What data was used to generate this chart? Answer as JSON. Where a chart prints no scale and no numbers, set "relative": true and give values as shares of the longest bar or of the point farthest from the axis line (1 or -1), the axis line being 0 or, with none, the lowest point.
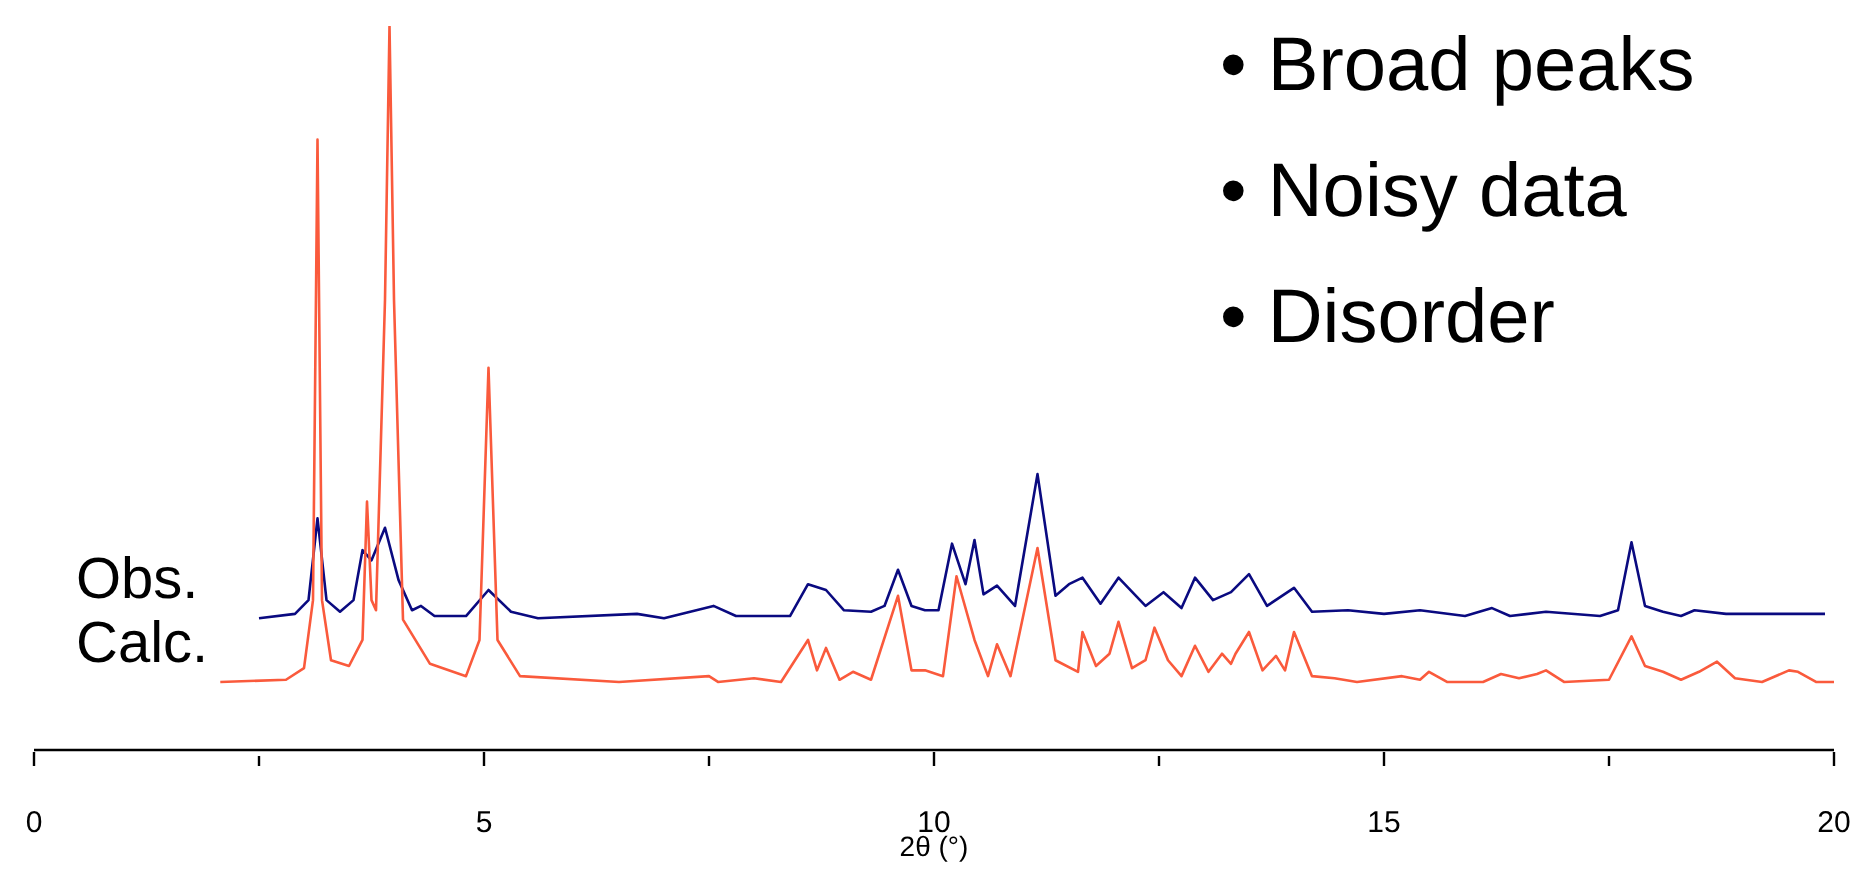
{
  "chart_data": {
    "type": "line",
    "relative": true,
    "xlabel": "2θ (°)",
    "annotations": [
      "• Broad peaks",
      "• Noisy data",
      "• Disorder"
    ],
    "xlim": [
      0,
      20
    ],
    "xticks": [
      0,
      {
        "value": 2.5,
        "label": null
      },
      5,
      {
        "value": 7.5,
        "label": null
      },
      10,
      {
        "value": 12.5,
        "label": null
      },
      15,
      {
        "value": 17.5,
        "label": null
      },
      20
    ],
    "grid": false,
    "legend": false,
    "marker": "none",
    "line_style": "solid",
    "series": [
      {
        "name": "Obs.",
        "color": "#0a0a80",
        "x": [
          2.5,
          2.9,
          3.05,
          3.15,
          3.25,
          3.4,
          3.55,
          3.65,
          3.75,
          3.9,
          4.05,
          4.2,
          4.3,
          4.45,
          4.8,
          5.05,
          5.3,
          5.6,
          6.7,
          7.0,
          7.55,
          7.8,
          8.4,
          8.6,
          8.8,
          9.0,
          9.3,
          9.45,
          9.6,
          9.75,
          9.9,
          10.05,
          10.2,
          10.35,
          10.45,
          10.55,
          10.7,
          10.9,
          11.15,
          11.35,
          11.5,
          11.65,
          11.85,
          12.05,
          12.35,
          12.55,
          12.75,
          12.9,
          13.1,
          13.3,
          13.5,
          13.7,
          14.0,
          14.2,
          14.6,
          15.0,
          15.4,
          15.9,
          16.2,
          16.4,
          16.8,
          17.4,
          17.6,
          17.75,
          17.9,
          18.1,
          18.3,
          18.45,
          18.8,
          19.5,
          19.9
        ],
        "values": [
          0.182,
          0.188,
          0.207,
          0.32,
          0.207,
          0.191,
          0.207,
          0.276,
          0.262,
          0.307,
          0.235,
          0.193,
          0.199,
          0.185,
          0.185,
          0.221,
          0.191,
          0.182,
          0.188,
          0.182,
          0.199,
          0.185,
          0.185,
          0.229,
          0.221,
          0.193,
          0.191,
          0.199,
          0.249,
          0.199,
          0.193,
          0.193,
          0.285,
          0.229,
          0.29,
          0.215,
          0.227,
          0.199,
          0.381,
          0.213,
          0.229,
          0.238,
          0.202,
          0.238,
          0.199,
          0.218,
          0.196,
          0.238,
          0.207,
          0.218,
          0.243,
          0.199,
          0.224,
          0.191,
          0.193,
          0.188,
          0.193,
          0.185,
          0.196,
          0.185,
          0.191,
          0.185,
          0.193,
          0.287,
          0.199,
          0.191,
          0.185,
          0.193,
          0.188,
          0.188,
          0.188
        ]
      },
      {
        "name": "Calc.",
        "color": "#fa5a3c",
        "x": [
          2.07,
          2.8,
          3.0,
          3.1,
          3.15,
          3.2,
          3.3,
          3.5,
          3.65,
          3.7,
          3.75,
          3.8,
          3.9,
          3.95,
          4.0,
          4.1,
          4.4,
          4.8,
          4.95,
          5.05,
          5.15,
          5.4,
          6.5,
          7.5,
          7.6,
          8.0,
          8.3,
          8.6,
          8.7,
          8.8,
          8.95,
          9.1,
          9.3,
          9.6,
          9.75,
          9.9,
          10.1,
          10.25,
          10.45,
          10.6,
          10.7,
          10.85,
          11.15,
          11.35,
          11.6,
          11.65,
          11.8,
          11.95,
          12.05,
          12.2,
          12.35,
          12.45,
          12.6,
          12.75,
          12.9,
          13.05,
          13.2,
          13.3,
          13.35,
          13.5,
          13.65,
          13.8,
          13.9,
          14.0,
          14.2,
          14.45,
          14.7,
          15.2,
          15.4,
          15.5,
          15.7,
          16.1,
          16.3,
          16.5,
          16.7,
          16.8,
          17.0,
          17.5,
          17.75,
          17.9,
          18.1,
          18.3,
          18.5,
          18.7,
          18.9,
          19.2,
          19.5,
          19.6,
          19.8,
          20.0
        ],
        "values": [
          0.094,
          0.097,
          0.113,
          0.207,
          0.843,
          0.207,
          0.124,
          0.116,
          0.152,
          0.343,
          0.207,
          0.193,
          0.622,
          1.0,
          0.622,
          0.18,
          0.119,
          0.102,
          0.152,
          0.528,
          0.152,
          0.102,
          0.094,
          0.102,
          0.094,
          0.099,
          0.094,
          0.152,
          0.11,
          0.141,
          0.097,
          0.108,
          0.097,
          0.213,
          0.11,
          0.11,
          0.102,
          0.24,
          0.152,
          0.102,
          0.146,
          0.102,
          0.279,
          0.124,
          0.108,
          0.163,
          0.116,
          0.133,
          0.177,
          0.113,
          0.124,
          0.169,
          0.124,
          0.102,
          0.144,
          0.108,
          0.133,
          0.119,
          0.133,
          0.163,
          0.11,
          0.13,
          0.11,
          0.163,
          0.102,
          0.099,
          0.094,
          0.102,
          0.097,
          0.108,
          0.094,
          0.094,
          0.105,
          0.099,
          0.105,
          0.11,
          0.094,
          0.097,
          0.157,
          0.116,
          0.108,
          0.097,
          0.108,
          0.122,
          0.099,
          0.094,
          0.11,
          0.108,
          0.094,
          0.094
        ]
      }
    ]
  }
}
